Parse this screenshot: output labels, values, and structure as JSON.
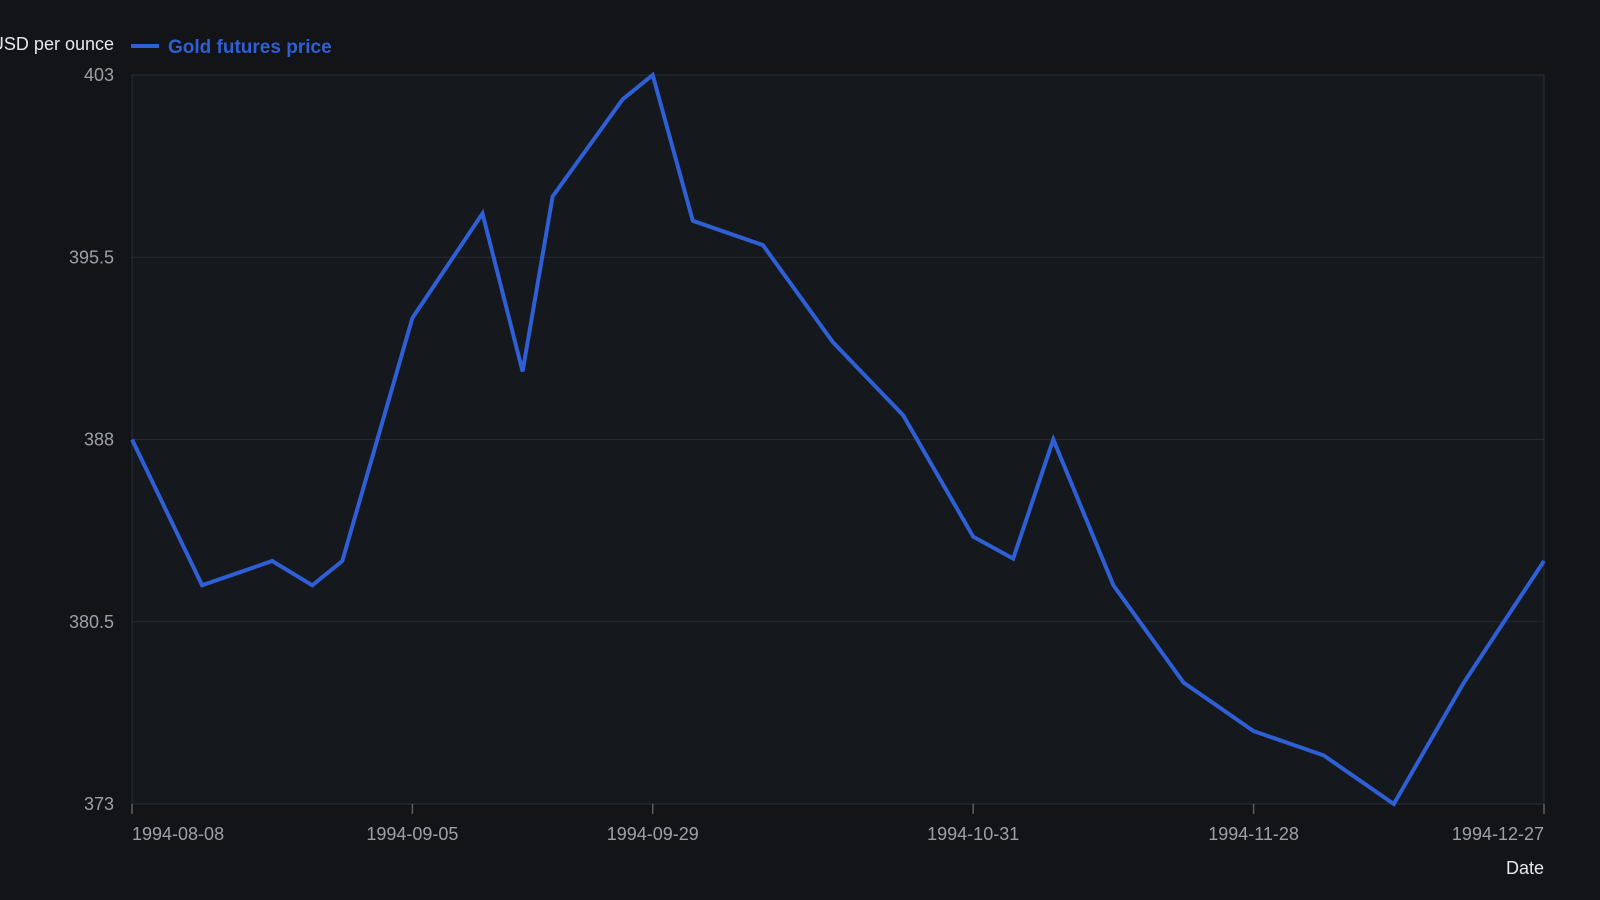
{
  "chart_data": {
    "type": "line",
    "title": "",
    "xlabel": "Date",
    "ylabel": "USD per ounce",
    "x_type": "date",
    "xlim": [
      "1994-08-08",
      "1994-12-27"
    ],
    "ylim": [
      373,
      403
    ],
    "y_ticks": [
      373,
      380.5,
      388,
      395.5,
      403
    ],
    "x_ticks": [
      "1994-08-08",
      "1994-09-05",
      "1994-09-29",
      "1994-10-31",
      "1994-11-28",
      "1994-12-27"
    ],
    "grid": "horizontal",
    "legend_position": "top-left",
    "series": [
      {
        "name": "Gold futures price",
        "color": "#2f5fd4",
        "points": [
          {
            "x": "1994-08-08",
            "y": 388.0
          },
          {
            "x": "1994-08-15",
            "y": 382.0
          },
          {
            "x": "1994-08-22",
            "y": 383.0
          },
          {
            "x": "1994-08-26",
            "y": 382.0
          },
          {
            "x": "1994-08-29",
            "y": 383.0
          },
          {
            "x": "1994-09-05",
            "y": 393.0
          },
          {
            "x": "1994-09-12",
            "y": 397.3
          },
          {
            "x": "1994-09-16",
            "y": 390.8
          },
          {
            "x": "1994-09-19",
            "y": 398.0
          },
          {
            "x": "1994-09-26",
            "y": 402.0
          },
          {
            "x": "1994-09-29",
            "y": 403.0
          },
          {
            "x": "1994-10-03",
            "y": 397.0
          },
          {
            "x": "1994-10-10",
            "y": 396.0
          },
          {
            "x": "1994-10-17",
            "y": 392.0
          },
          {
            "x": "1994-10-24",
            "y": 389.0
          },
          {
            "x": "1994-10-31",
            "y": 384.0
          },
          {
            "x": "1994-11-04",
            "y": 383.1
          },
          {
            "x": "1994-11-08",
            "y": 388.0
          },
          {
            "x": "1994-11-14",
            "y": 382.0
          },
          {
            "x": "1994-11-21",
            "y": 378.0
          },
          {
            "x": "1994-11-28",
            "y": 376.0
          },
          {
            "x": "1994-12-05",
            "y": 375.0
          },
          {
            "x": "1994-12-12",
            "y": 373.0
          },
          {
            "x": "1994-12-19",
            "y": 378.0
          },
          {
            "x": "1994-12-27",
            "y": 383.0
          }
        ]
      }
    ]
  }
}
